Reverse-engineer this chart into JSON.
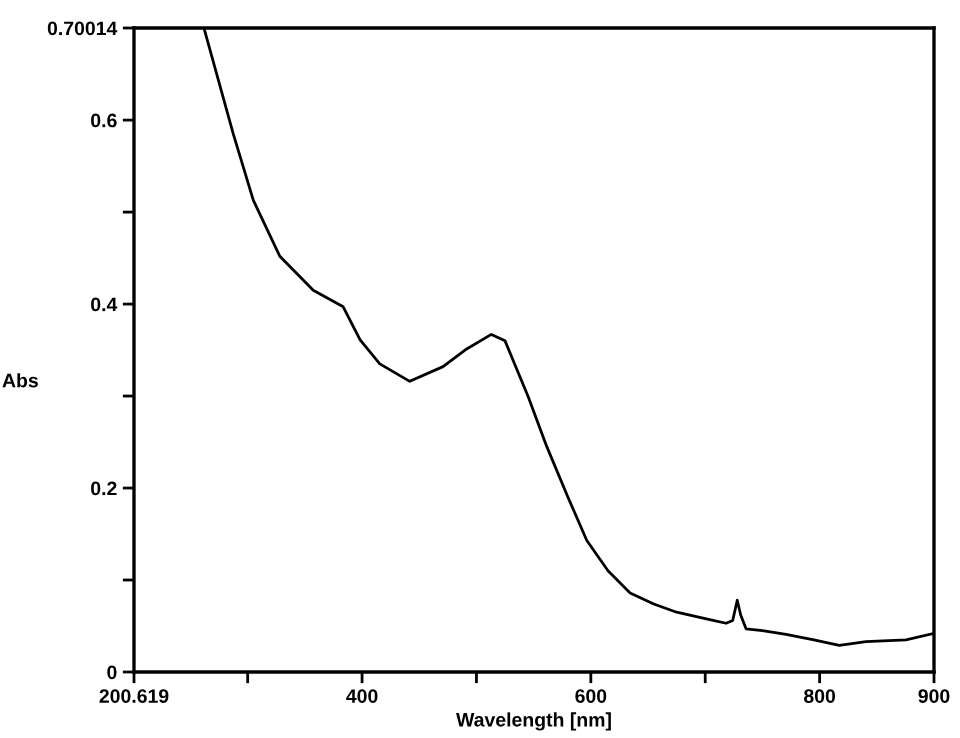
{
  "chart_data": {
    "type": "line",
    "xlabel": "Wavelength [nm]",
    "ylabel": "Abs",
    "xlim": [
      200.619,
      900
    ],
    "ylim": [
      0,
      0.70014
    ],
    "xticks": [
      {
        "value": 200.619,
        "label": "200.619"
      },
      {
        "value": 300,
        "label": null
      },
      400,
      {
        "value": 500,
        "label": null
      },
      600,
      {
        "value": 700,
        "label": null
      },
      800,
      900
    ],
    "yticks": [
      0,
      {
        "value": 0.1,
        "label": null
      },
      0.2,
      {
        "value": 0.3,
        "label": null
      },
      0.4,
      {
        "value": 0.5,
        "label": null
      },
      0.6,
      {
        "value": 0.70014,
        "label": "0.70014"
      }
    ],
    "grid": false,
    "legend": false,
    "marker": "none",
    "line_style": "solid",
    "series": [
      {
        "color": "#000000",
        "x": [
          261.8,
          287.4,
          304.9,
          328.1,
          357.3,
          383.5,
          398.3,
          415.5,
          441.7,
          470.8,
          490,
          513,
          525,
          532,
          545,
          561.5,
          580,
          596.5,
          615,
          634.3,
          655,
          675,
          700,
          718.2,
          724,
          728,
          731,
          735.7,
          750,
          770.7,
          795,
          817.2,
          840.5,
          875.5,
          900
        ],
        "values": [
          0.7,
          0.585,
          0.513,
          0.452,
          0.415,
          0.397,
          0.361,
          0.335,
          0.316,
          0.332,
          0.35,
          0.367,
          0.36,
          0.339,
          0.3,
          0.245,
          0.19,
          0.143,
          0.11,
          0.086,
          0.074,
          0.065,
          0.058,
          0.053,
          0.056,
          0.078,
          0.062,
          0.047,
          0.045,
          0.041,
          0.035,
          0.029,
          0.033,
          0.035,
          0.042
        ]
      }
    ]
  }
}
